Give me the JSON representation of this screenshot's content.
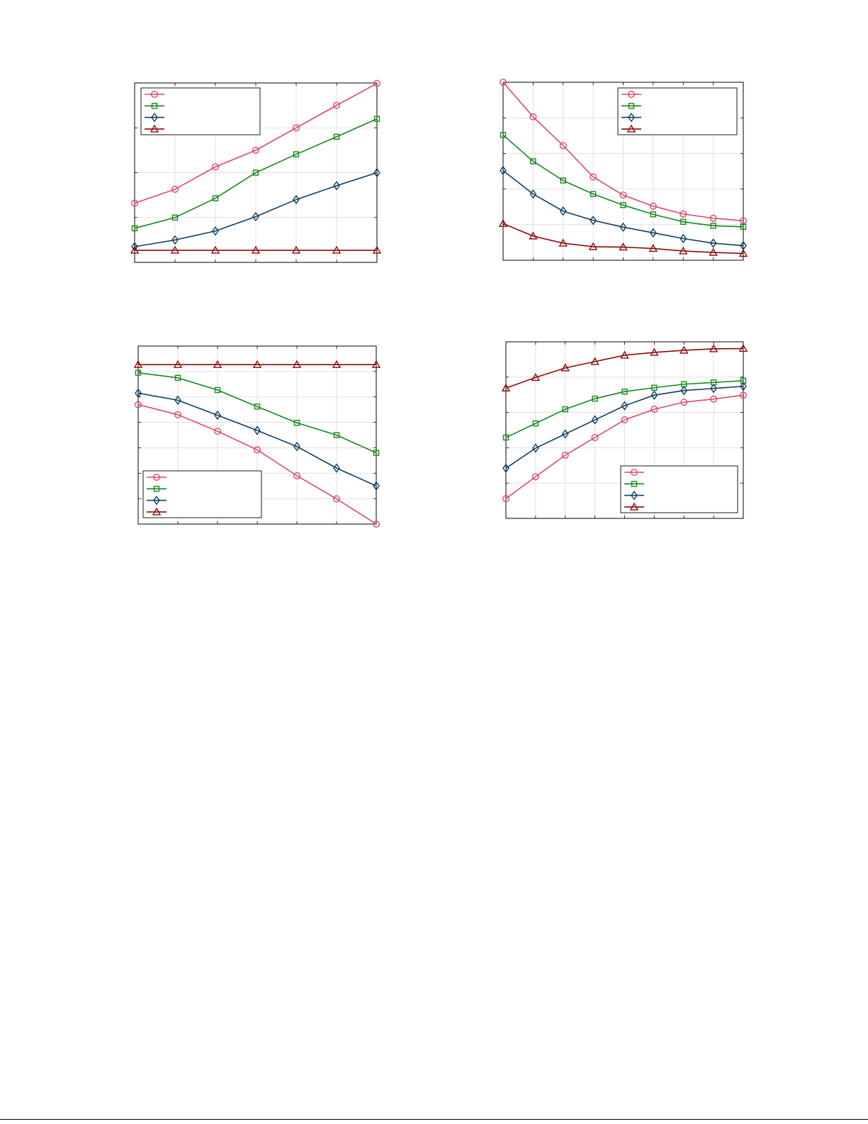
{
  "colors": {
    "series_1": "#d94b68",
    "series_2": "#14891a",
    "series_3": "#0f3f62",
    "series_4": "#8b0a0a",
    "grid": "#d9d9d9",
    "frame": "#000000"
  },
  "chart_data": [
    {
      "type": "line",
      "title": "",
      "xlabel": "",
      "ylabel": "",
      "grid": true,
      "legend": "top-left",
      "xlim": [
        1,
        7
      ],
      "ylim": [
        0,
        4
      ],
      "x": [
        1,
        2,
        3,
        4,
        5,
        6,
        7
      ],
      "series": [
        {
          "marker": "circle",
          "values": [
            1.32,
            1.63,
            2.13,
            2.5,
            3.0,
            3.5,
            3.99
          ]
        },
        {
          "marker": "square",
          "values": [
            0.76,
            1.0,
            1.43,
            2.0,
            2.41,
            2.8,
            3.2
          ]
        },
        {
          "marker": "diamond",
          "values": [
            0.35,
            0.5,
            0.7,
            1.02,
            1.4,
            1.71,
            2.0
          ]
        },
        {
          "marker": "triangle",
          "values": [
            0.27,
            0.27,
            0.27,
            0.27,
            0.27,
            0.27,
            0.27
          ]
        }
      ]
    },
    {
      "type": "line",
      "title": "",
      "xlabel": "",
      "ylabel": "",
      "grid": true,
      "legend": "top-right",
      "xlim": [
        1,
        9
      ],
      "ylim": [
        0,
        5
      ],
      "x": [
        1,
        2,
        3,
        4,
        5,
        6,
        7,
        8,
        9
      ],
      "series": [
        {
          "marker": "circle",
          "values": [
            5.0,
            4.03,
            3.22,
            2.34,
            1.83,
            1.52,
            1.3,
            1.18,
            1.11
          ]
        },
        {
          "marker": "square",
          "values": [
            3.52,
            2.78,
            2.24,
            1.86,
            1.55,
            1.29,
            1.08,
            0.97,
            0.94
          ]
        },
        {
          "marker": "diamond",
          "values": [
            2.52,
            1.86,
            1.38,
            1.12,
            0.93,
            0.77,
            0.61,
            0.48,
            0.41
          ]
        },
        {
          "marker": "triangle",
          "values": [
            1.03,
            0.68,
            0.48,
            0.38,
            0.37,
            0.33,
            0.26,
            0.22,
            0.19
          ]
        }
      ]
    },
    {
      "type": "line",
      "title": "",
      "xlabel": "",
      "ylabel": "",
      "grid": true,
      "legend": "bottom-left",
      "xlim": [
        1,
        7
      ],
      "ylim": [
        0,
        7
      ],
      "x": [
        1,
        2,
        3,
        4,
        5,
        6,
        7
      ],
      "series": [
        {
          "marker": "circle",
          "values": [
            4.7,
            4.3,
            3.65,
            2.92,
            1.9,
            0.99,
            0.0
          ]
        },
        {
          "marker": "square",
          "values": [
            5.95,
            5.75,
            5.27,
            4.62,
            3.98,
            3.5,
            2.8
          ]
        },
        {
          "marker": "diamond",
          "values": [
            5.15,
            4.87,
            4.28,
            3.68,
            3.05,
            2.2,
            1.5
          ]
        },
        {
          "marker": "triangle",
          "values": [
            6.27,
            6.27,
            6.27,
            6.27,
            6.27,
            6.27,
            6.27
          ]
        }
      ]
    },
    {
      "type": "line",
      "title": "",
      "xlabel": "",
      "ylabel": "",
      "grid": true,
      "legend": "bottom-right",
      "xlim": [
        1,
        9
      ],
      "ylim": [
        0,
        5
      ],
      "x": [
        1,
        2,
        3,
        4,
        5,
        6,
        7,
        8,
        9
      ],
      "series": [
        {
          "marker": "circle",
          "values": [
            0.56,
            1.18,
            1.79,
            2.29,
            2.79,
            3.09,
            3.29,
            3.38,
            3.49
          ]
        },
        {
          "marker": "square",
          "values": [
            2.29,
            2.69,
            3.09,
            3.39,
            3.59,
            3.7,
            3.8,
            3.85,
            3.9
          ]
        },
        {
          "marker": "diamond",
          "values": [
            1.42,
            1.99,
            2.39,
            2.79,
            3.19,
            3.49,
            3.62,
            3.68,
            3.74
          ]
        },
        {
          "marker": "triangle",
          "values": [
            3.69,
            3.99,
            4.26,
            4.44,
            4.62,
            4.7,
            4.76,
            4.8,
            4.81
          ]
        }
      ]
    }
  ]
}
